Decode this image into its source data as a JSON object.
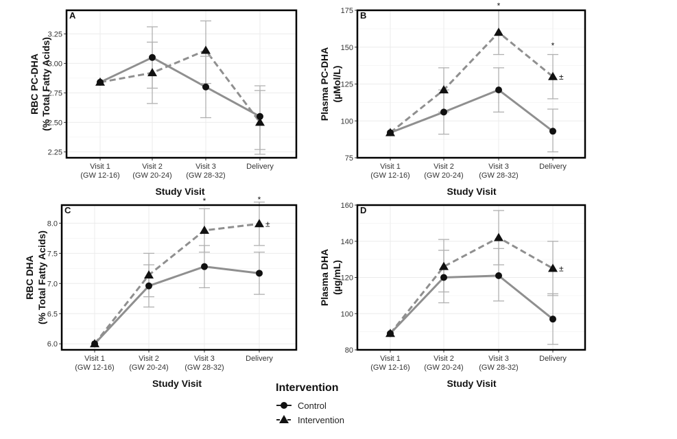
{
  "chart_data": [
    {
      "type": "line",
      "panel": "A",
      "categories": [
        "Visit 1\n(GW 12-16)",
        "Visit 2\n(GW 20-24)",
        "Visit 3\n(GW 28-32)",
        "Delivery"
      ],
      "xlabel": "Study Visit",
      "ylabel": "RBC PC-DHA\n(% Total Fatty Acids)",
      "ylim": [
        2.2,
        3.45
      ],
      "yticks": [
        2.25,
        2.5,
        2.75,
        3.0,
        3.25
      ],
      "ytick_labels": [
        "2.25",
        "2.50",
        "2.75",
        "3.00",
        "3.25"
      ],
      "series": [
        {
          "name": "Control",
          "values": [
            2.84,
            3.05,
            2.8,
            2.55
          ],
          "err_low": [
            2.84,
            2.79,
            2.54,
            2.27
          ],
          "err_high": [
            2.84,
            3.31,
            3.06,
            2.81
          ]
        },
        {
          "name": "Intervention",
          "values": [
            2.84,
            2.92,
            3.11,
            2.5
          ],
          "err_low": [
            2.84,
            2.66,
            2.83,
            2.23
          ],
          "err_high": [
            2.84,
            3.18,
            3.36,
            2.77
          ]
        }
      ],
      "annotations": []
    },
    {
      "type": "line",
      "panel": "B",
      "categories": [
        "Visit 1\n(GW 12-16)",
        "Visit 2\n(GW 20-24)",
        "Visit 3\n(GW 28-32)",
        "Delivery"
      ],
      "xlabel": "Study Visit",
      "ylabel": "Plasma PC-DHA\n(µMol/L)",
      "ylim": [
        75,
        175
      ],
      "yticks": [
        75,
        100,
        125,
        150,
        175
      ],
      "ytick_labels": [
        "75",
        "100",
        "125",
        "150",
        "175"
      ],
      "series": [
        {
          "name": "Control",
          "values": [
            92,
            106,
            121,
            93
          ],
          "err_low": [
            92,
            91,
            106,
            79
          ],
          "err_high": [
            92,
            121,
            136,
            108
          ]
        },
        {
          "name": "Intervention",
          "values": [
            92,
            121,
            160,
            130
          ],
          "err_low": [
            92,
            106,
            145,
            115
          ],
          "err_high": [
            92,
            136,
            175,
            145
          ]
        }
      ],
      "annotations": [
        {
          "category": 2,
          "value": 178,
          "text": "*"
        },
        {
          "category": 3,
          "value": 151,
          "text": "*"
        },
        {
          "category": 3,
          "value": 130,
          "text": "±",
          "side": "right"
        }
      ]
    },
    {
      "type": "line",
      "panel": "C",
      "categories": [
        "Visit 1\n(GW 12-16)",
        "Visit 2\n(GW 20-24)",
        "Visit 3\n(GW 28-32)",
        "Delivery"
      ],
      "xlabel": "Study Visit",
      "ylabel": "RBC DHA\n(% Total Fatty Acids)",
      "ylim": [
        5.9,
        8.3
      ],
      "yticks": [
        6.0,
        6.5,
        7.0,
        7.5,
        8.0
      ],
      "ytick_labels": [
        "6.0",
        "6.5",
        "7.0",
        "7.5",
        "8.0"
      ],
      "series": [
        {
          "name": "Control",
          "values": [
            6.0,
            6.96,
            7.28,
            7.17
          ],
          "err_low": [
            6.0,
            6.61,
            6.93,
            6.82
          ],
          "err_high": [
            6.0,
            7.31,
            7.63,
            7.52
          ]
        },
        {
          "name": "Intervention",
          "values": [
            6.0,
            7.14,
            7.88,
            7.99
          ],
          "err_low": [
            6.0,
            6.78,
            7.52,
            7.63
          ],
          "err_high": [
            6.0,
            7.5,
            8.24,
            8.35
          ]
        }
      ],
      "annotations": [
        {
          "category": 2,
          "value": 8.37,
          "text": "*"
        },
        {
          "category": 3,
          "value": 8.39,
          "text": "*"
        },
        {
          "category": 3,
          "value": 7.99,
          "text": "±",
          "side": "right"
        }
      ]
    },
    {
      "type": "line",
      "panel": "D",
      "categories": [
        "Visit 1\n(GW 12-16)",
        "Visit 2\n(GW 20-24)",
        "Visit 3\n(GW 28-32)",
        "Delivery"
      ],
      "xlabel": "Study Visit",
      "ylabel": "Plasma DHA\n(µg/mL)",
      "ylim": [
        80,
        160
      ],
      "yticks": [
        80,
        100,
        120,
        140,
        160
      ],
      "ytick_labels": [
        "80",
        "100",
        "120",
        "140",
        "160"
      ],
      "series": [
        {
          "name": "Control",
          "values": [
            89,
            120,
            121,
            97
          ],
          "err_low": [
            89,
            106,
            107,
            83
          ],
          "err_high": [
            89,
            135,
            136,
            111
          ]
        },
        {
          "name": "Intervention",
          "values": [
            89,
            126,
            142,
            125
          ],
          "err_low": [
            89,
            112,
            127,
            110
          ],
          "err_high": [
            89,
            141,
            157,
            140
          ]
        }
      ],
      "annotations": [
        {
          "category": 3,
          "value": 125,
          "text": "±",
          "side": "right"
        }
      ]
    }
  ],
  "legend": {
    "title": "Intervention",
    "items": [
      {
        "label": "Control",
        "marker": "circle",
        "line": "solid"
      },
      {
        "label": "Intervention",
        "marker": "triangle",
        "line": "dashed"
      }
    ]
  },
  "colors": {
    "line": "#8f8f8f",
    "marker": "#111111",
    "errorbar": "#b0b0b0",
    "grid": "#ebebeb",
    "frame": "#000000"
  }
}
